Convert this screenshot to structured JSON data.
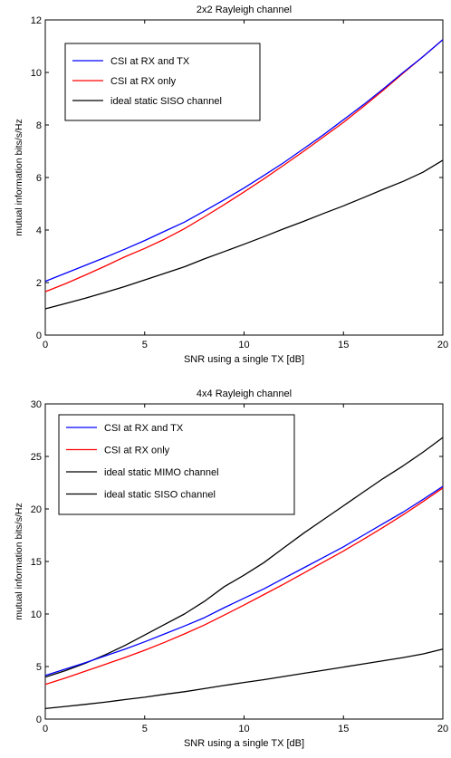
{
  "chart_data": [
    {
      "type": "line",
      "title": "2x2 Rayleigh channel",
      "xlabel": "SNR using a single TX  [dB]",
      "ylabel": "mutual information bits/s/Hz",
      "xlim": [
        0,
        20
      ],
      "ylim": [
        0,
        12
      ],
      "xticks": [
        "0",
        "5",
        "10",
        "15",
        "20"
      ],
      "yticks": [
        "0",
        "2",
        "4",
        "6",
        "8",
        "10",
        "12"
      ],
      "grid": false,
      "legend_position": "top-left",
      "x": [
        0,
        1,
        2,
        3,
        4,
        5,
        6,
        7,
        8,
        9,
        10,
        11,
        12,
        13,
        14,
        15,
        16,
        17,
        18,
        19,
        20
      ],
      "series": [
        {
          "name": "CSI at RX and TX",
          "color": "#0000ff",
          "values": [
            2.05,
            2.35,
            2.65,
            2.95,
            3.27,
            3.6,
            3.95,
            4.3,
            4.72,
            5.15,
            5.6,
            6.08,
            6.57,
            7.1,
            7.63,
            8.2,
            8.77,
            9.37,
            10.0,
            10.6,
            11.25
          ]
        },
        {
          "name": "CSI at RX only",
          "color": "#ff0000",
          "values": [
            1.65,
            1.95,
            2.28,
            2.62,
            2.98,
            3.3,
            3.65,
            4.05,
            4.5,
            4.97,
            5.45,
            5.95,
            6.47,
            7.0,
            7.55,
            8.1,
            8.7,
            9.32,
            9.97,
            10.6,
            11.25
          ]
        },
        {
          "name": "ideal static SISO channel",
          "color": "#000000",
          "values": [
            1.0,
            1.2,
            1.4,
            1.62,
            1.85,
            2.1,
            2.35,
            2.6,
            2.9,
            3.18,
            3.46,
            3.75,
            4.05,
            4.33,
            4.63,
            4.92,
            5.23,
            5.55,
            5.85,
            6.2,
            6.66
          ]
        }
      ]
    },
    {
      "type": "line",
      "title": "4x4 Rayleigh channel",
      "xlabel": "SNR using a single TX  [dB]",
      "ylabel": "mutual information bits/s/Hz",
      "xlim": [
        0,
        20
      ],
      "ylim": [
        0,
        30
      ],
      "xticks": [
        "0",
        "5",
        "10",
        "15",
        "20"
      ],
      "yticks": [
        "0",
        "5",
        "10",
        "15",
        "20",
        "25",
        "30"
      ],
      "grid": false,
      "legend_position": "top-left",
      "x": [
        0,
        1,
        2,
        3,
        4,
        5,
        6,
        7,
        8,
        9,
        10,
        11,
        12,
        13,
        14,
        15,
        16,
        17,
        18,
        19,
        20
      ],
      "series": [
        {
          "name": "CSI at RX and TX",
          "color": "#0000ff",
          "values": [
            4.15,
            4.75,
            5.35,
            6.0,
            6.65,
            7.35,
            8.1,
            8.85,
            9.65,
            10.6,
            11.5,
            12.4,
            13.4,
            14.4,
            15.4,
            16.4,
            17.5,
            18.6,
            19.7,
            20.9,
            22.15
          ]
        },
        {
          "name": "CSI at RX only",
          "color": "#ff0000",
          "values": [
            3.3,
            3.9,
            4.55,
            5.2,
            5.85,
            6.55,
            7.3,
            8.1,
            8.95,
            9.9,
            10.85,
            11.85,
            12.85,
            13.9,
            14.95,
            16.0,
            17.1,
            18.25,
            19.45,
            20.7,
            22.0
          ]
        },
        {
          "name": "ideal static MIMO channel",
          "color": "#000000",
          "values": [
            4.0,
            4.6,
            5.3,
            6.1,
            7.0,
            8.0,
            9.0,
            10.0,
            11.2,
            12.6,
            13.7,
            14.9,
            16.3,
            17.7,
            19.0,
            20.3,
            21.6,
            22.9,
            24.1,
            25.4,
            26.8
          ]
        },
        {
          "name": "ideal static SISO channel",
          "color": "#000000",
          "values": [
            1.0,
            1.2,
            1.4,
            1.6,
            1.85,
            2.08,
            2.35,
            2.6,
            2.9,
            3.2,
            3.48,
            3.75,
            4.05,
            4.35,
            4.65,
            4.95,
            5.25,
            5.55,
            5.85,
            6.2,
            6.66
          ]
        }
      ]
    }
  ]
}
